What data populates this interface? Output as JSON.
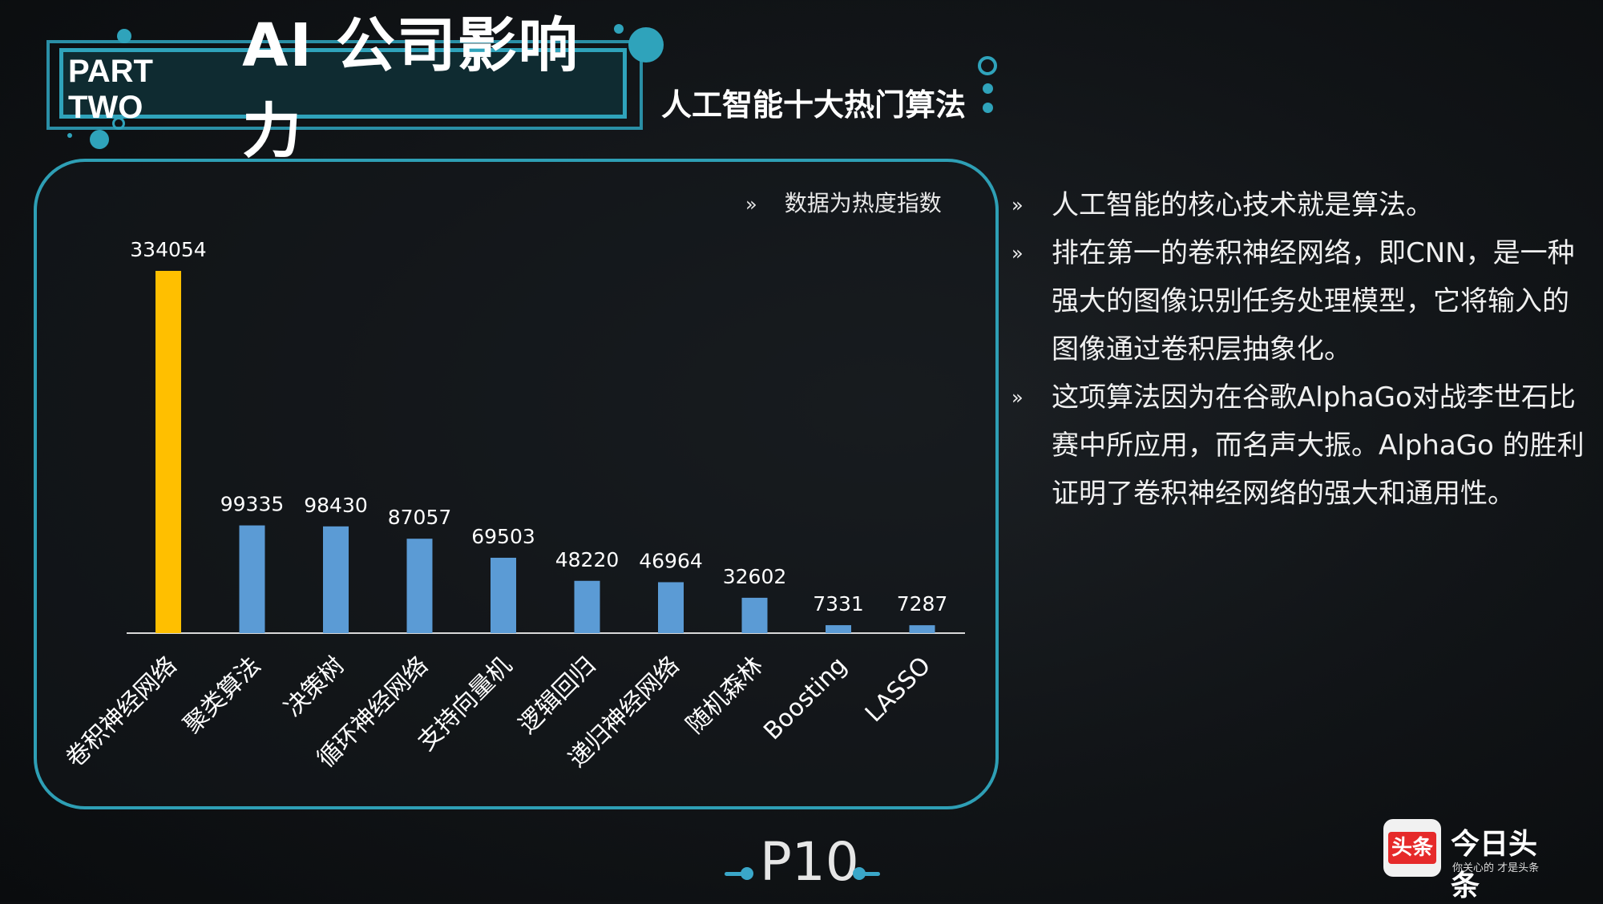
{
  "header": {
    "part": "PART TWO",
    "title": "AI 公司影响力",
    "subtitle": "人工智能十大热门算法"
  },
  "note": {
    "marker": "»",
    "text": "数据为热度指数"
  },
  "chart_data": {
    "type": "bar",
    "categories": [
      "卷积神经网络",
      "聚类算法",
      "决策树",
      "循环神经网络",
      "支持向量机",
      "逻辑回归",
      "递归神经网络",
      "随机森林",
      "Boosting",
      "LASSO"
    ],
    "values": [
      334054,
      99335,
      98430,
      87057,
      69503,
      48220,
      46964,
      32602,
      7331,
      7287
    ],
    "data_labels": [
      "334054",
      "99335",
      "98430",
      "87057",
      "69503",
      "48220",
      "46964",
      "32602",
      "7331",
      "7287"
    ],
    "highlight_index": 0,
    "colors": {
      "highlight": "#ffbf00",
      "default": "#5b9bd5",
      "label": "#ffffff",
      "axis": "#d9d9d9"
    },
    "title": "",
    "xlabel": "",
    "ylabel": "",
    "ylim": [
      0,
      334054
    ],
    "grid": false,
    "legend": "none"
  },
  "bullets": [
    {
      "marker": "»",
      "text": "人工智能的核心技术就是算法。"
    },
    {
      "marker": "»",
      "text": "排在第一的卷积神经网络，即CNN，是一种强大的图像识别任务处理模型，它将输入的图像通过卷积层抽象化。"
    },
    {
      "marker": "»",
      "text": "这项算法因为在谷歌AlphaGo对战李世石比赛中所应用，而名声大振。AlphaGo 的胜利证明了卷积神经网络的强大和通用性。"
    }
  ],
  "footer": {
    "page": "P10"
  },
  "logo": {
    "badge": "头条",
    "name": "今日头条",
    "slogan": "你关心的 才是头条"
  },
  "colors": {
    "accent": "#2fa3bb",
    "accent_light": "#3aa7c9",
    "background": "#111417"
  }
}
